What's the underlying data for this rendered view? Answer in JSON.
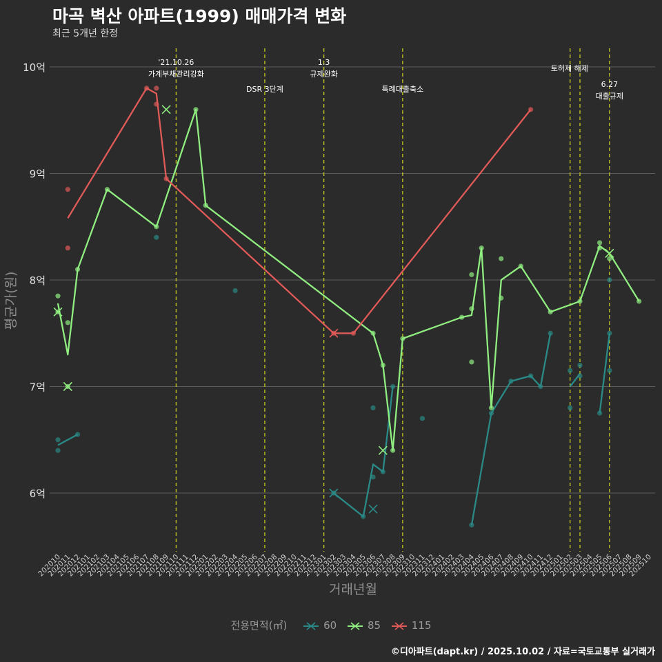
{
  "chart_data": {
    "type": "line",
    "title": "마곡 벽산 아파트(1999) 매매가격 변화",
    "subtitle": "최근 5개년 한정",
    "xlabel": "거래년월",
    "ylabel": "평균가(원)",
    "caption": "©디아파트(dapt.kr) / 2025.10.02 / 자료=국토교통부 실거래가",
    "legend_title": "전용면적(㎡)",
    "x_categories": [
      "202010",
      "202011",
      "202012",
      "202101",
      "202102",
      "202103",
      "202104",
      "202105",
      "202106",
      "202107",
      "202108",
      "202109",
      "202110",
      "202111",
      "202112",
      "202201",
      "202202",
      "202203",
      "202204",
      "202205",
      "202206",
      "202207",
      "202208",
      "202209",
      "202210",
      "202211",
      "202212",
      "202301",
      "202302",
      "202303",
      "202304",
      "202305",
      "202306",
      "202307",
      "202308",
      "202309",
      "202310",
      "202311",
      "202312",
      "202401",
      "202402",
      "202403",
      "202404",
      "202405",
      "202406",
      "202407",
      "202408",
      "202409",
      "202410",
      "202411",
      "202412",
      "202501",
      "202502",
      "202503",
      "202504",
      "202505",
      "202506",
      "202507",
      "202508",
      "202509",
      "202510"
    ],
    "y_ticks": [
      6,
      7,
      8,
      9,
      10
    ],
    "y_tick_labels": [
      "6억",
      "7억",
      "8억",
      "9억",
      "10억"
    ],
    "ylim": [
      5.5,
      10.3
    ],
    "series": [
      {
        "name": "60",
        "color": "#2a8a87",
        "line_segments": [
          [
            [
              "202010",
              6.45
            ],
            [
              "202012",
              6.55
            ]
          ],
          [
            [
              "202302",
              6.0
            ],
            [
              "202305",
              5.78
            ],
            [
              "202306",
              6.27
            ],
            [
              "202307",
              6.2
            ],
            [
              "202308",
              7.0
            ]
          ],
          [
            [
              "202404",
              5.7
            ],
            [
              "202406",
              6.75
            ],
            [
              "202408",
              7.05
            ],
            [
              "202410",
              7.1
            ],
            [
              "202411",
              7.0
            ],
            [
              "202412",
              7.5
            ]
          ],
          [
            [
              "202502",
              7.0
            ],
            [
              "202503",
              7.12
            ]
          ],
          [
            [
              "202505",
              6.75
            ],
            [
              "202506",
              7.5
            ]
          ]
        ],
        "points": [
          [
            "202010",
            6.5
          ],
          [
            "202010",
            6.4
          ],
          [
            "202012",
            6.55
          ],
          [
            "202108",
            8.4
          ],
          [
            "202204",
            7.9
          ],
          [
            "202302",
            6.0
          ],
          [
            "202305",
            5.78
          ],
          [
            "202306",
            6.8
          ],
          [
            "202306",
            6.15
          ],
          [
            "202307",
            6.2
          ],
          [
            "202308",
            7.0
          ],
          [
            "202311",
            6.7
          ],
          [
            "202404",
            5.7
          ],
          [
            "202406",
            6.75
          ],
          [
            "202408",
            7.05
          ],
          [
            "202410",
            7.1
          ],
          [
            "202411",
            7.0
          ],
          [
            "202412",
            7.5
          ],
          [
            "202502",
            7.15
          ],
          [
            "202502",
            6.8
          ],
          [
            "202503",
            7.2
          ],
          [
            "202503",
            7.1
          ],
          [
            "202505",
            6.75
          ],
          [
            "202506",
            7.5
          ],
          [
            "202506",
            7.15
          ],
          [
            "202506",
            8.0
          ]
        ],
        "x_markers": [
          [
            "202302",
            6.0
          ],
          [
            "202306",
            5.85
          ]
        ]
      },
      {
        "name": "85",
        "color": "#90ee80",
        "line_segments": [
          [
            [
              "202010",
              7.78
            ],
            [
              "202011",
              7.3
            ],
            [
              "202012",
              8.1
            ],
            [
              "202103",
              8.85
            ],
            [
              "202108",
              8.5
            ],
            [
              "202112",
              9.6
            ],
            [
              "202201",
              8.7
            ],
            [
              "202306",
              7.5
            ],
            [
              "202307",
              7.2
            ],
            [
              "202308",
              6.4
            ],
            [
              "202309",
              7.45
            ],
            [
              "202403",
              7.65
            ],
            [
              "202404",
              7.67
            ],
            [
              "202405",
              8.3
            ],
            [
              "202406",
              6.8
            ],
            [
              "202407",
              8.0
            ],
            [
              "202409",
              8.13
            ],
            [
              "202412",
              7.7
            ],
            [
              "202503",
              7.8
            ],
            [
              "202505",
              8.32
            ],
            [
              "202506",
              8.25
            ],
            [
              "202509",
              7.8
            ]
          ]
        ],
        "points": [
          [
            "202010",
            7.85
          ],
          [
            "202010",
            7.7
          ],
          [
            "202011",
            7.6
          ],
          [
            "202011",
            7.0
          ],
          [
            "202012",
            8.1
          ],
          [
            "202103",
            8.85
          ],
          [
            "202108",
            8.5
          ],
          [
            "202112",
            9.6
          ],
          [
            "202201",
            8.7
          ],
          [
            "202306",
            7.5
          ],
          [
            "202307",
            7.2
          ],
          [
            "202308",
            6.4
          ],
          [
            "202309",
            7.45
          ],
          [
            "202403",
            7.65
          ],
          [
            "202404",
            8.05
          ],
          [
            "202404",
            7.73
          ],
          [
            "202404",
            7.23
          ],
          [
            "202405",
            8.3
          ],
          [
            "202406",
            6.8
          ],
          [
            "202407",
            8.2
          ],
          [
            "202407",
            7.83
          ],
          [
            "202409",
            8.13
          ],
          [
            "202412",
            7.7
          ],
          [
            "202503",
            7.8
          ],
          [
            "202505",
            8.35
          ],
          [
            "202505",
            8.3
          ],
          [
            "202506",
            8.2
          ],
          [
            "202509",
            7.8
          ]
        ],
        "x_markers": [
          [
            "202010",
            7.7
          ],
          [
            "202011",
            7.0
          ],
          [
            "202109",
            9.6
          ],
          [
            "202307",
            6.4
          ],
          [
            "202506",
            8.25
          ]
        ]
      },
      {
        "name": "115",
        "color": "#e05a58",
        "line_segments": [
          [
            [
              "202011",
              8.58
            ],
            [
              "202107",
              9.8
            ],
            [
              "202108",
              9.75
            ],
            [
              "202109",
              8.95
            ],
            [
              "202302",
              7.5
            ],
            [
              "202304",
              7.5
            ],
            [
              "202410",
              9.6
            ]
          ]
        ],
        "points": [
          [
            "202011",
            8.85
          ],
          [
            "202011",
            8.3
          ],
          [
            "202107",
            9.8
          ],
          [
            "202108",
            9.8
          ],
          [
            "202108",
            9.65
          ],
          [
            "202109",
            8.95
          ],
          [
            "202302",
            7.5
          ],
          [
            "202304",
            7.5
          ],
          [
            "202410",
            9.6
          ]
        ],
        "x_markers": [
          [
            "202302",
            7.5
          ]
        ]
      }
    ],
    "annotations": [
      {
        "x": "202110",
        "lines": [
          "'21.10.26",
          "가계부채관리강화"
        ],
        "level": 0
      },
      {
        "x": "202207",
        "lines": [
          "DSR 3단계"
        ],
        "level": 1
      },
      {
        "x": "202301",
        "lines": [
          "1.3",
          "규제완화"
        ],
        "level": 0
      },
      {
        "x": "202309",
        "lines": [
          "특례대출축소"
        ],
        "level": 1
      },
      {
        "x": "202502",
        "lines": [
          "토허제 해제"
        ],
        "level": 0,
        "anchor": "start"
      },
      {
        "x": "202503",
        "lines": [],
        "level": 0
      },
      {
        "x": "202506",
        "lines": [
          "6.27",
          "대출규제"
        ],
        "level": 2
      }
    ]
  }
}
